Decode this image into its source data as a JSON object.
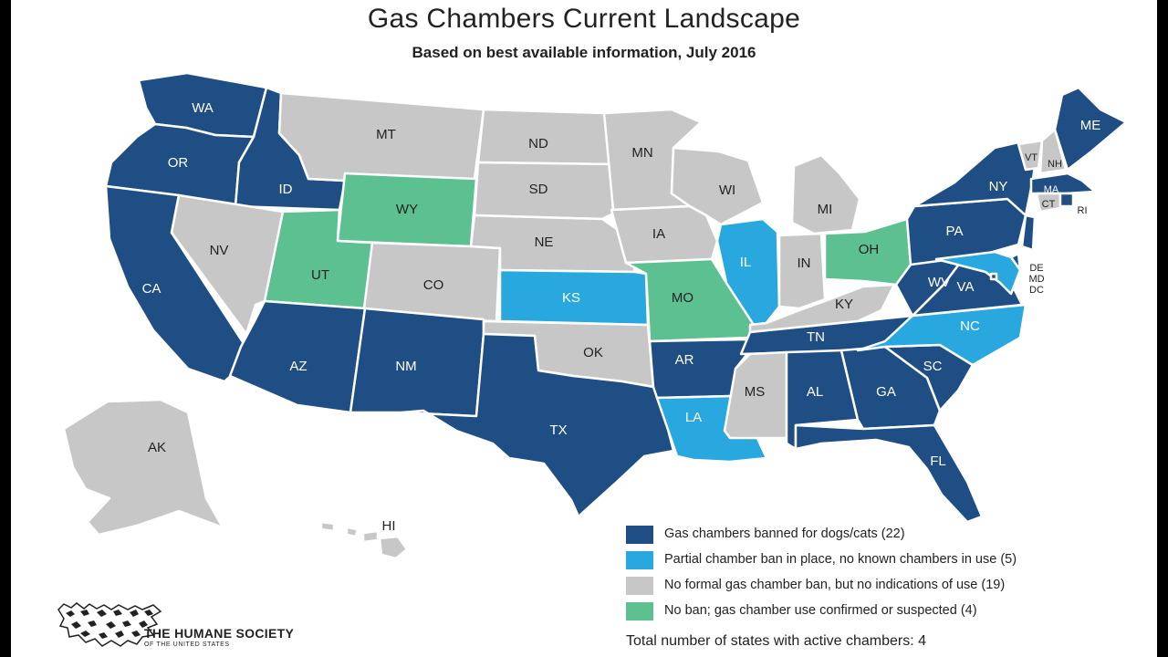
{
  "header": {
    "title": "Gas Chambers Current Landscape",
    "subtitle": "Based on best available information, July 2016"
  },
  "colors": {
    "banned": "#1f4e84",
    "partial": "#29a8e0",
    "no_ban_no_use": "#c7c7c7",
    "confirmed": "#5dc090"
  },
  "legend": [
    {
      "category": "banned",
      "label": "Gas chambers banned for dogs/cats (22)"
    },
    {
      "category": "partial",
      "label": "Partial chamber ban in place, no known chambers in use (5)"
    },
    {
      "category": "no_ban_no_use",
      "label": "No formal gas chamber ban, but no indications of use (19)"
    },
    {
      "category": "confirmed",
      "label": "No ban; gas chamber use confirmed or suspected (4)"
    }
  ],
  "total": "Total number of states with active chambers: 4",
  "organization": {
    "name": "THE HUMANE SOCIETY",
    "sub": "OF THE UNITED STATES"
  },
  "states": [
    {
      "code": "WA",
      "category": "banned"
    },
    {
      "code": "OR",
      "category": "banned"
    },
    {
      "code": "CA",
      "category": "banned"
    },
    {
      "code": "ID",
      "category": "banned"
    },
    {
      "code": "NV",
      "category": "no_ban_no_use"
    },
    {
      "code": "MT",
      "category": "no_ban_no_use"
    },
    {
      "code": "WY",
      "category": "confirmed"
    },
    {
      "code": "UT",
      "category": "confirmed"
    },
    {
      "code": "CO",
      "category": "no_ban_no_use"
    },
    {
      "code": "AZ",
      "category": "banned"
    },
    {
      "code": "NM",
      "category": "banned"
    },
    {
      "code": "ND",
      "category": "no_ban_no_use"
    },
    {
      "code": "SD",
      "category": "no_ban_no_use"
    },
    {
      "code": "NE",
      "category": "no_ban_no_use"
    },
    {
      "code": "KS",
      "category": "partial"
    },
    {
      "code": "OK",
      "category": "no_ban_no_use"
    },
    {
      "code": "TX",
      "category": "banned"
    },
    {
      "code": "MN",
      "category": "no_ban_no_use"
    },
    {
      "code": "IA",
      "category": "no_ban_no_use"
    },
    {
      "code": "MO",
      "category": "confirmed"
    },
    {
      "code": "AR",
      "category": "banned"
    },
    {
      "code": "LA",
      "category": "partial"
    },
    {
      "code": "WI",
      "category": "no_ban_no_use"
    },
    {
      "code": "IL",
      "category": "partial"
    },
    {
      "code": "MI",
      "category": "no_ban_no_use"
    },
    {
      "code": "IN",
      "category": "no_ban_no_use"
    },
    {
      "code": "OH",
      "category": "confirmed"
    },
    {
      "code": "KY",
      "category": "no_ban_no_use"
    },
    {
      "code": "TN",
      "category": "banned"
    },
    {
      "code": "MS",
      "category": "no_ban_no_use"
    },
    {
      "code": "AL",
      "category": "banned"
    },
    {
      "code": "GA",
      "category": "banned"
    },
    {
      "code": "FL",
      "category": "banned"
    },
    {
      "code": "SC",
      "category": "banned"
    },
    {
      "code": "NC",
      "category": "partial"
    },
    {
      "code": "VA",
      "category": "banned"
    },
    {
      "code": "WV",
      "category": "banned"
    },
    {
      "code": "PA",
      "category": "banned"
    },
    {
      "code": "NY",
      "category": "banned"
    },
    {
      "code": "NJ",
      "category": "banned"
    },
    {
      "code": "DE",
      "category": "banned"
    },
    {
      "code": "MD",
      "category": "partial"
    },
    {
      "code": "DC",
      "category": "banned"
    },
    {
      "code": "VT",
      "category": "no_ban_no_use"
    },
    {
      "code": "NH",
      "category": "no_ban_no_use"
    },
    {
      "code": "ME",
      "category": "banned"
    },
    {
      "code": "MA",
      "category": "banned"
    },
    {
      "code": "CT",
      "category": "no_ban_no_use"
    },
    {
      "code": "RI",
      "category": "banned"
    },
    {
      "code": "AK",
      "category": "no_ban_no_use"
    },
    {
      "code": "HI",
      "category": "no_ban_no_use"
    }
  ]
}
